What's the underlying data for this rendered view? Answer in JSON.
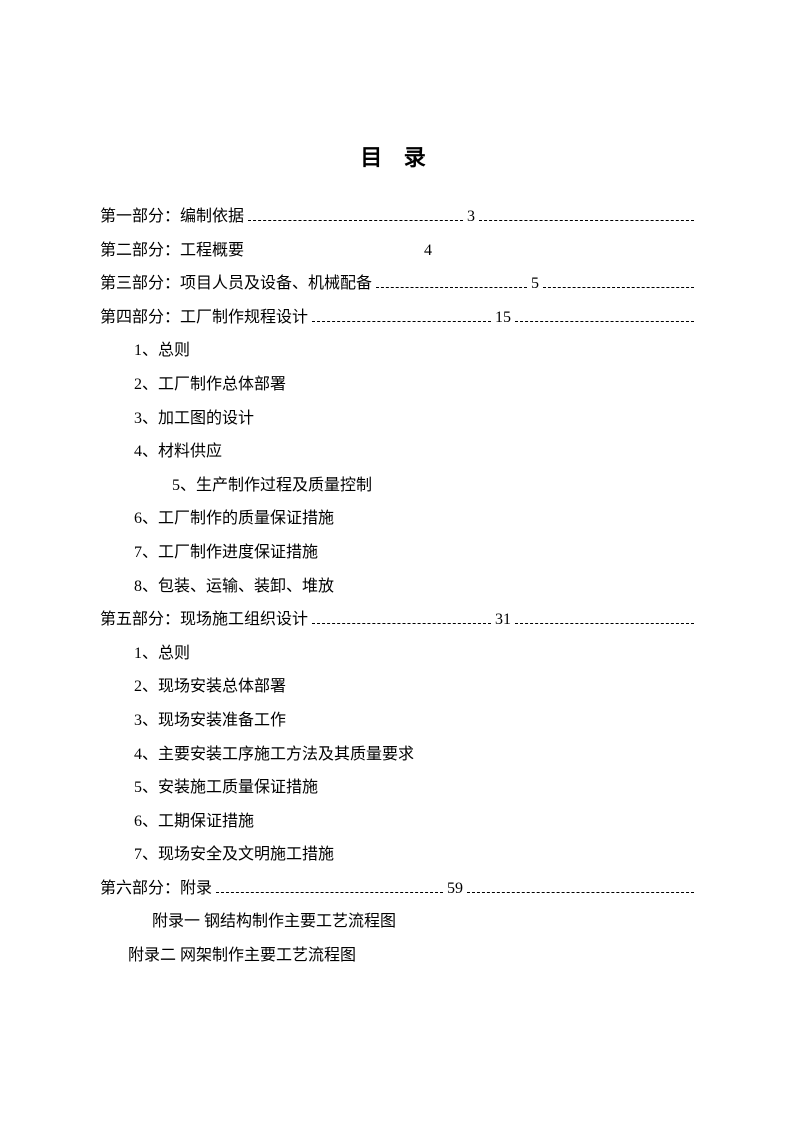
{
  "title": "目 录",
  "sections": [
    {
      "label": "第一部分：编制依据",
      "page": "3",
      "leader": true,
      "trailing": true
    },
    {
      "label": "第二部分：工程概要",
      "page": "4",
      "leader": false,
      "trailing": false
    },
    {
      "label": "第三部分：项目人员及设备、机械配备",
      "page": "5",
      "leader": true,
      "trailing": true
    },
    {
      "label": "第四部分：工厂制作规程设计",
      "page": "15",
      "leader": true,
      "trailing": true
    }
  ],
  "section4_items": [
    "1、总则",
    "2、工厂制作总体部署",
    "3、加工图的设计",
    "4、材料供应"
  ],
  "section4_item5": "5、生产制作过程及质量控制",
  "section4_items_b": [
    "6、工厂制作的质量保证措施",
    "7、工厂制作进度保证措施",
    "8、包装、运输、装卸、堆放"
  ],
  "section5": {
    "label": "第五部分：现场施工组织设计",
    "page": "31"
  },
  "section5_items": [
    "1、总则",
    "2、现场安装总体部署",
    "3、现场安装准备工作",
    "4、主要安装工序施工方法及其质量要求",
    "5、安装施工质量保证措施",
    "6、工期保证措施",
    "7、现场安全及文明施工措施"
  ],
  "section6": {
    "label": "第六部分：附录",
    "page": "59"
  },
  "appendix1": "附录一 钢结构制作主要工艺流程图",
  "appendix2": "附录二 网架制作主要工艺流程图",
  "colors": {
    "text": "#000000",
    "background": "#ffffff"
  },
  "typography": {
    "body_fontsize": 16,
    "title_fontsize": 22,
    "line_height": 2.1
  }
}
